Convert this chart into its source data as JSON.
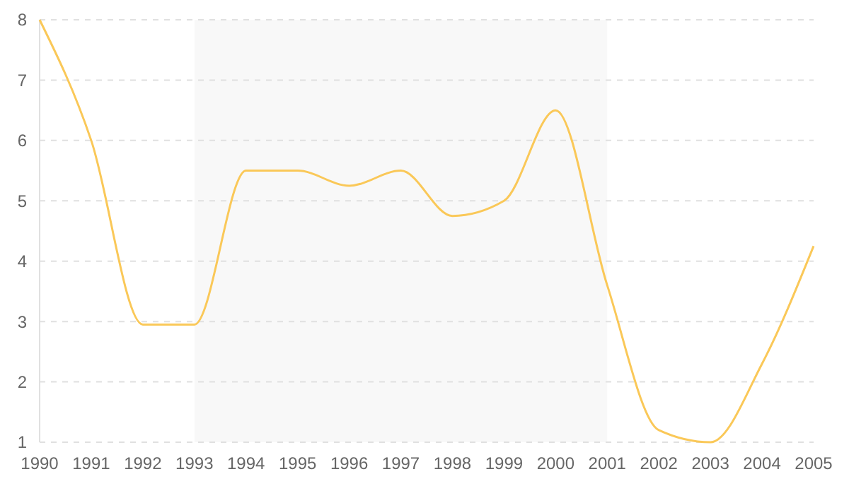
{
  "chart_data": {
    "type": "line",
    "x": [
      1990,
      1991,
      1992,
      1993,
      1994,
      1995,
      1996,
      1997,
      1998,
      1999,
      2000,
      2001,
      2002,
      2003,
      2004,
      2005
    ],
    "series": [
      {
        "color": "#fac858",
        "values": [
          8,
          6,
          2.95,
          2.95,
          5.5,
          5.5,
          5.25,
          5.5,
          4.75,
          5,
          6.5,
          3.6,
          1.2,
          1,
          2.3,
          4.25
        ]
      }
    ],
    "xlim": [
      1990,
      2005
    ],
    "xticks": [
      1990,
      1991,
      1992,
      1993,
      1994,
      1995,
      1996,
      1997,
      1998,
      1999,
      2000,
      2001,
      2002,
      2003,
      2004,
      2005
    ],
    "ylim": [
      1,
      8
    ],
    "yticks": [
      1,
      2,
      3,
      4,
      5,
      6,
      7,
      8
    ],
    "grid": "y",
    "marker": "none",
    "line_style": "solid",
    "bands": [
      {
        "axis": "x",
        "from": 1993,
        "to": 2001,
        "color": "#f8f8f8"
      }
    ]
  }
}
